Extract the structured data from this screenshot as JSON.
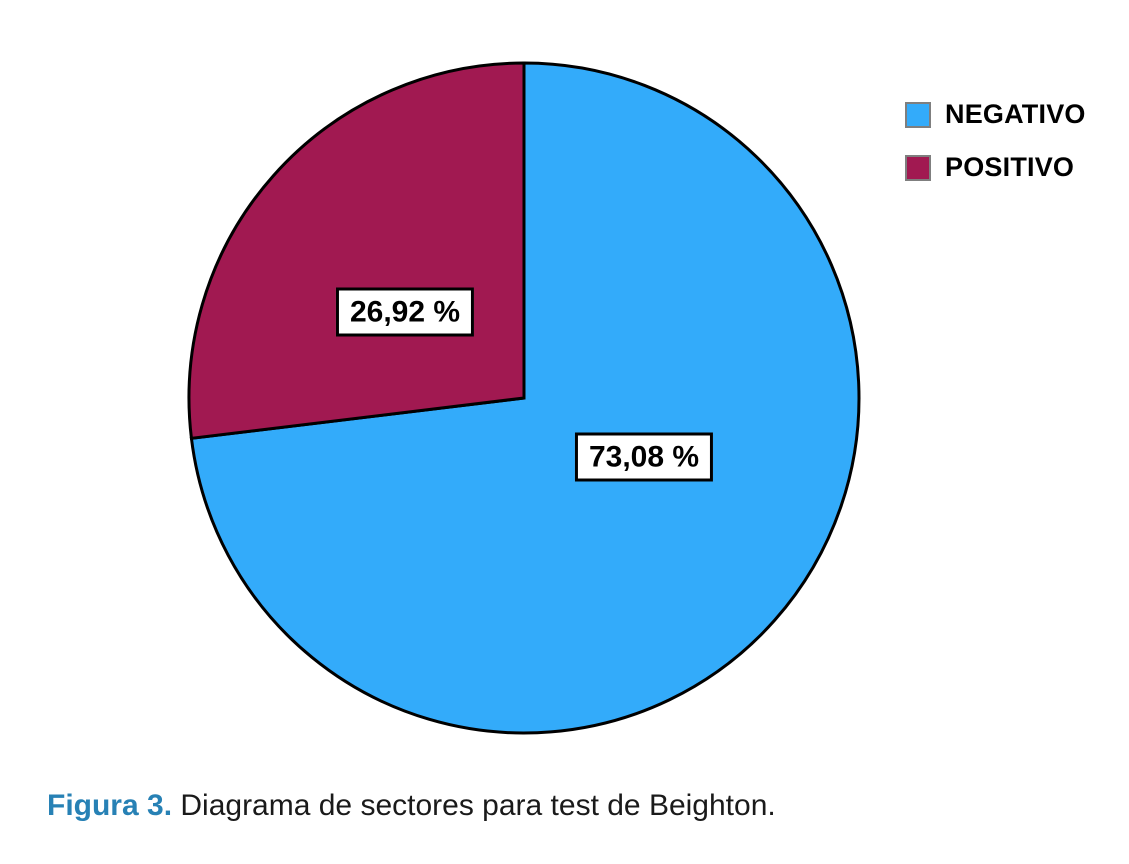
{
  "chart_data": {
    "type": "pie",
    "title": "",
    "categories": [
      "NEGATIVO",
      "POSITIVO"
    ],
    "values": [
      73.08,
      26.92
    ],
    "slice_labels": [
      "73,08 %",
      "26,92 %"
    ],
    "colors": [
      "#33ABFA",
      "#A11951"
    ],
    "stroke_color": "#000000",
    "start_angle_deg": -90,
    "direction": "clockwise",
    "legend_position": "top-right",
    "grid": false
  },
  "legend": {
    "items": [
      {
        "label": "NEGATIVO",
        "color": "#33ABFA"
      },
      {
        "label": "POSITIVO",
        "color": "#A11951"
      }
    ]
  },
  "caption": {
    "prefix": "Figura 3.",
    "rest": " Diagrama de sectores para test de Beighton.",
    "prefix_color": "#2781B5"
  }
}
